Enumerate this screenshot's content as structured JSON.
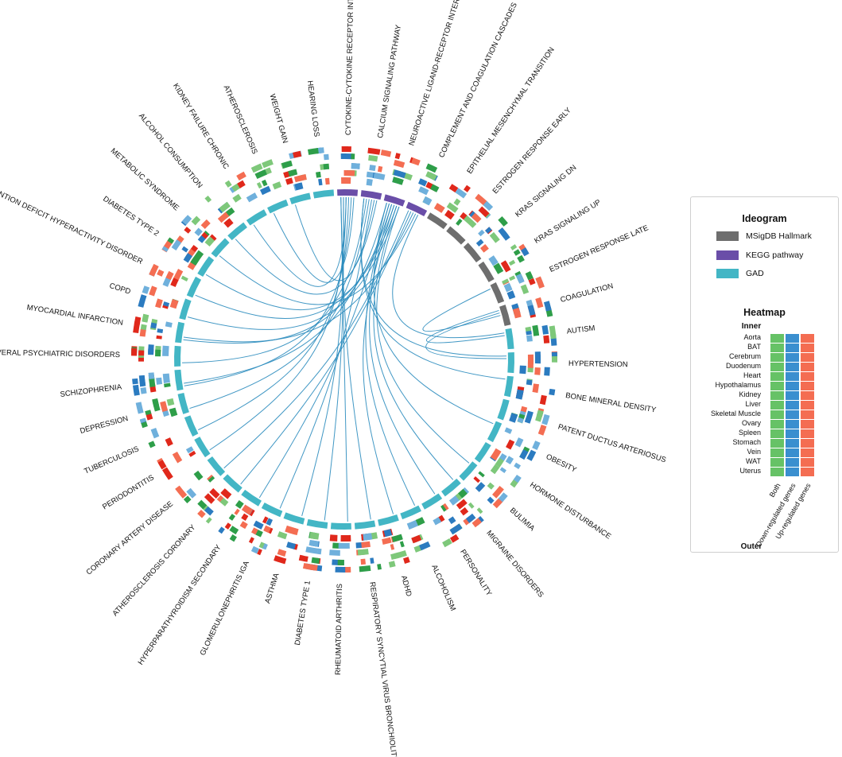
{
  "diagram": {
    "sectors": [
      {
        "label": "CYTOKINE-CYTOKINE RECEPTOR INTERACTION",
        "group": "kegg"
      },
      {
        "label": "CALCIUM SIGNALING PATHWAY",
        "group": "kegg"
      },
      {
        "label": "NEUROACTIVE LIGAND-RECEPTOR INTERACTION",
        "group": "kegg"
      },
      {
        "label": "COMPLEMENT AND COAGULATION CASCADES",
        "group": "kegg"
      },
      {
        "label": "EPITHELIAL MESENCHYMAL TRANSITION",
        "group": "hallmark"
      },
      {
        "label": "ESTROGEN RESPONSE EARLY",
        "group": "hallmark"
      },
      {
        "label": "KRAS SIGNALING DN",
        "group": "hallmark"
      },
      {
        "label": "KRAS SIGNALING UP",
        "group": "hallmark"
      },
      {
        "label": "ESTROGEN RESPONSE LATE",
        "group": "hallmark"
      },
      {
        "label": "COAGULATION",
        "group": "hallmark"
      },
      {
        "label": "AUTISM",
        "group": "gad"
      },
      {
        "label": "HYPERTENSION",
        "group": "gad"
      },
      {
        "label": "BONE MINERAL DENSITY",
        "group": "gad"
      },
      {
        "label": "PATENT DUCTUS ARTERIOSUS",
        "group": "gad"
      },
      {
        "label": "OBESITY",
        "group": "gad"
      },
      {
        "label": "HORMONE DISTURBANCE",
        "group": "gad"
      },
      {
        "label": "BULIMIA",
        "group": "gad"
      },
      {
        "label": "MIGRAINE DISORDERS",
        "group": "gad"
      },
      {
        "label": "PERSONALITY",
        "group": "gad"
      },
      {
        "label": "ALCOHOLISM",
        "group": "gad"
      },
      {
        "label": "ADHD",
        "group": "gad"
      },
      {
        "label": "RESPIRATORY SYNCYTIAL VIRUS BRONCHIOLITIS",
        "group": "gad"
      },
      {
        "label": "RHEUMATOID ARTHRITIS",
        "group": "gad"
      },
      {
        "label": "DIABETES TYPE 1",
        "group": "gad"
      },
      {
        "label": "ASTHMA",
        "group": "gad"
      },
      {
        "label": "GLOMERULONEPHRITIS IGA",
        "group": "gad"
      },
      {
        "label": "HYPERPARATHYROIDISM SECONDARY",
        "group": "gad"
      },
      {
        "label": "ATHEROSCLEROSIS CORONARY",
        "group": "gad"
      },
      {
        "label": "CORONARY ARTERY DISEASE",
        "group": "gad"
      },
      {
        "label": "PERIODONTITIS",
        "group": "gad"
      },
      {
        "label": "TUBERCULOSIS",
        "group": "gad"
      },
      {
        "label": "DEPRESSION",
        "group": "gad"
      },
      {
        "label": "SCHIZOPHRENIA",
        "group": "gad"
      },
      {
        "label": "SEVERAL PSYCHIATRIC DISORDERS",
        "group": "gad"
      },
      {
        "label": "MYOCARDIAL INFARCTION",
        "group": "gad"
      },
      {
        "label": "COPD",
        "group": "gad"
      },
      {
        "label": "ATTENTION DEFICIT HYPERACTIVITY DISORDER",
        "group": "gad"
      },
      {
        "label": "DIABETES TYPE 2",
        "group": "gad"
      },
      {
        "label": "METABOLIC SYNDROME",
        "group": "gad"
      },
      {
        "label": "ALCOHOL CONSUMPTION",
        "group": "gad"
      },
      {
        "label": "KIDNEY FAILURE CHRONIC",
        "group": "gad"
      },
      {
        "label": "ATHEROSCLEROSIS",
        "group": "gad"
      },
      {
        "label": "WEIGHT GAIN",
        "group": "gad"
      },
      {
        "label": "HEARING LOSS",
        "group": "gad"
      }
    ],
    "links": [
      [
        "CYTOKINE-CYTOKINE RECEPTOR INTERACTION",
        "RESPIRATORY SYNCYTIAL VIRUS BRONCHIOLITIS"
      ],
      [
        "CYTOKINE-CYTOKINE RECEPTOR INTERACTION",
        "ASTHMA"
      ],
      [
        "CYTOKINE-CYTOKINE RECEPTOR INTERACTION",
        "PERIODONTITIS"
      ],
      [
        "CYTOKINE-CYTOKINE RECEPTOR INTERACTION",
        "TUBERCULOSIS"
      ],
      [
        "CYTOKINE-CYTOKINE RECEPTOR INTERACTION",
        "SCHIZOPHRENIA"
      ],
      [
        "CYTOKINE-CYTOKINE RECEPTOR INTERACTION",
        "ATHEROSCLEROSIS"
      ],
      [
        "CYTOKINE-CYTOKINE RECEPTOR INTERACTION",
        "RHEUMATOID ARTHRITIS"
      ],
      [
        "CYTOKINE-CYTOKINE RECEPTOR INTERACTION",
        "DIABETES TYPE 1"
      ],
      [
        "CALCIUM SIGNALING PATHWAY",
        "HYPERTENSION"
      ],
      [
        "CALCIUM SIGNALING PATHWAY",
        "SEVERAL PSYCHIATRIC DISORDERS"
      ],
      [
        "CALCIUM SIGNALING PATHWAY",
        "DEPRESSION"
      ],
      [
        "CALCIUM SIGNALING PATHWAY",
        "GLOMERULONEPHRITIS IGA"
      ],
      [
        "CALCIUM SIGNALING PATHWAY",
        "WEIGHT GAIN"
      ],
      [
        "NEUROACTIVE LIGAND-RECEPTOR INTERACTION",
        "SCHIZOPHRENIA"
      ],
      [
        "NEUROACTIVE LIGAND-RECEPTOR INTERACTION",
        "ALCOHOLISM"
      ],
      [
        "NEUROACTIVE LIGAND-RECEPTOR INTERACTION",
        "PERSONALITY"
      ],
      [
        "NEUROACTIVE LIGAND-RECEPTOR INTERACTION",
        "ADHD"
      ],
      [
        "NEUROACTIVE LIGAND-RECEPTOR INTERACTION",
        "MIGRAINE DISORDERS"
      ],
      [
        "NEUROACTIVE LIGAND-RECEPTOR INTERACTION",
        "BULIMIA"
      ],
      [
        "NEUROACTIVE LIGAND-RECEPTOR INTERACTION",
        "OBESITY"
      ],
      [
        "NEUROACTIVE LIGAND-RECEPTOR INTERACTION",
        "HYPERPARATHYROIDISM SECONDARY"
      ],
      [
        "NEUROACTIVE LIGAND-RECEPTOR INTERACTION",
        "MYOCARDIAL INFARCTION"
      ],
      [
        "COMPLEMENT AND COAGULATION CASCADES",
        "CORONARY ARTERY DISEASE"
      ],
      [
        "COMPLEMENT AND COAGULATION CASCADES",
        "ATHEROSCLEROSIS CORONARY"
      ],
      [
        "COMPLEMENT AND COAGULATION CASCADES",
        "MYOCARDIAL INFARCTION"
      ],
      [
        "COMPLEMENT AND COAGULATION CASCADES",
        "METABOLIC SYNDROME"
      ],
      [
        "COMPLEMENT AND COAGULATION CASCADES",
        "AUTISM"
      ],
      [
        "COAGULATION",
        "AUTISM"
      ],
      [
        "COAGULATION",
        "HYPERTENSION"
      ],
      [
        "ESTROGEN RESPONSE LATE",
        "COAGULATION"
      ],
      [
        "CYTOKINE-CYTOKINE RECEPTOR INTERACTION",
        "KIDNEY FAILURE CHRONIC"
      ],
      [
        "CALCIUM SIGNALING PATHWAY",
        "ALCOHOL CONSUMPTION"
      ],
      [
        "NEUROACTIVE LIGAND-RECEPTOR INTERACTION",
        "ATTENTION DEFICIT HYPERACTIVITY DISORDER"
      ],
      [
        "NEUROACTIVE LIGAND-RECEPTOR INTERACTION",
        "DIABETES TYPE 2"
      ],
      [
        "CALCIUM SIGNALING PATHWAY",
        "BONE MINERAL DENSITY"
      ],
      [
        "NEUROACTIVE LIGAND-RECEPTOR INTERACTION",
        "COPD"
      ]
    ]
  },
  "colors": {
    "hallmark": "#6e6e6e",
    "kegg": "#6a4ea8",
    "gad": "#43b6c5",
    "link": "#2b8cbe",
    "both_light": "#7ec87a",
    "both_dark": "#2e9e49",
    "down_light": "#6fb0dc",
    "down_dark": "#2b7bc0",
    "up_light": "#f46d52",
    "up_dark": "#e0281b"
  },
  "legend": {
    "ideogram_title": "Ideogram",
    "items": [
      {
        "label": "MSigDB Hallmark",
        "color": "#6e6e6e"
      },
      {
        "label": "KEGG pathway",
        "color": "#6a4ea8"
      },
      {
        "label": "GAD",
        "color": "#43b6c5"
      }
    ],
    "heatmap_title": "Heatmap",
    "inner_label": "Inner",
    "outer_label": "Outer",
    "tissues": [
      "Aorta",
      "BAT",
      "Cerebrum",
      "Duodenum",
      "Heart",
      "Hypothalamus",
      "Kidney",
      "Liver",
      "Skeletal Muscle",
      "Ovary",
      "Spleen",
      "Stomach",
      "Vein",
      "WAT",
      "Uterus"
    ],
    "columns": [
      {
        "label": "Both",
        "color": "#66c266"
      },
      {
        "label": "Down-regulated genes",
        "color": "#3a8fcf"
      },
      {
        "label": "Up-regulated genes",
        "color": "#f46d52"
      }
    ]
  }
}
